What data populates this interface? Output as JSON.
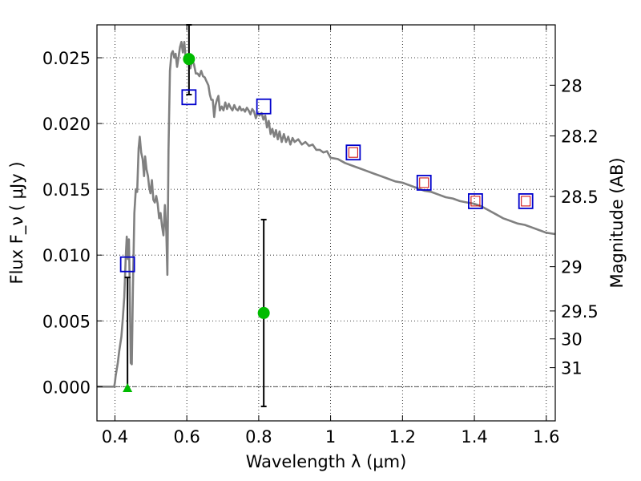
{
  "chart_data": {
    "type": "scatter",
    "xlabel": "Wavelength  λ (μm)",
    "ylabel": "Flux  F_ν  ( μJy )",
    "ylabel_right": "Magnitude (AB)",
    "xlim": [
      0.35,
      1.625
    ],
    "ylim": [
      -0.0026,
      0.0275
    ],
    "grid": true,
    "x_ticks": [
      {
        "value": 0.4,
        "label": "0.4"
      },
      {
        "value": 0.6,
        "label": "0.6"
      },
      {
        "value": 0.8,
        "label": "0.8"
      },
      {
        "value": 1.0,
        "label": "1"
      },
      {
        "value": 1.2,
        "label": "1.2"
      },
      {
        "value": 1.4,
        "label": "1.4"
      },
      {
        "value": 1.6,
        "label": "1.6"
      }
    ],
    "y_ticks": [
      {
        "value": 0.0,
        "label": "0.000"
      },
      {
        "value": 0.005,
        "label": "0.005"
      },
      {
        "value": 0.01,
        "label": "0.010"
      },
      {
        "value": 0.015,
        "label": "0.015"
      },
      {
        "value": 0.02,
        "label": "0.020"
      },
      {
        "value": 0.025,
        "label": "0.025"
      }
    ],
    "y_right_ticks": [
      {
        "value": 28,
        "label": "28"
      },
      {
        "value": 28.2,
        "label": "28.2"
      },
      {
        "value": 28.5,
        "label": "28.5"
      },
      {
        "value": 29,
        "label": "29"
      },
      {
        "value": 29.5,
        "label": "29.5"
      },
      {
        "value": 30,
        "label": "30"
      },
      {
        "value": 31,
        "label": "31"
      }
    ],
    "colors": {
      "model": "#808080",
      "observed": "#00bb00",
      "model_phot_outer": "#0000cc",
      "model_phot_inner": "#cc0000",
      "errorbar": "#000000",
      "zero_line": "#555555"
    },
    "series": [
      {
        "kind": "line",
        "role": "model spectrum",
        "points": [
          [
            0.35,
            0.0
          ],
          [
            0.398,
            0.0
          ],
          [
            0.4,
            0.0003
          ],
          [
            0.402,
            0.0008
          ],
          [
            0.408,
            0.0018
          ],
          [
            0.412,
            0.0027
          ],
          [
            0.418,
            0.0038
          ],
          [
            0.422,
            0.0052
          ],
          [
            0.426,
            0.0068
          ],
          [
            0.43,
            0.0098
          ],
          [
            0.433,
            0.0114
          ],
          [
            0.436,
            0.0097
          ],
          [
            0.439,
            0.0112
          ],
          [
            0.441,
            0.0082
          ],
          [
            0.444,
            0.0018
          ],
          [
            0.447,
            0.0017
          ],
          [
            0.45,
            0.0075
          ],
          [
            0.454,
            0.0132
          ],
          [
            0.458,
            0.015
          ],
          [
            0.462,
            0.0148
          ],
          [
            0.466,
            0.0181
          ],
          [
            0.469,
            0.019
          ],
          [
            0.473,
            0.0178
          ],
          [
            0.477,
            0.0173
          ],
          [
            0.481,
            0.016
          ],
          [
            0.484,
            0.0175
          ],
          [
            0.488,
            0.0165
          ],
          [
            0.492,
            0.016
          ],
          [
            0.495,
            0.0152
          ],
          [
            0.499,
            0.0147
          ],
          [
            0.503,
            0.0157
          ],
          [
            0.507,
            0.0142
          ],
          [
            0.511,
            0.014
          ],
          [
            0.515,
            0.0145
          ],
          [
            0.519,
            0.0139
          ],
          [
            0.523,
            0.0128
          ],
          [
            0.527,
            0.0132
          ],
          [
            0.531,
            0.0122
          ],
          [
            0.535,
            0.0115
          ],
          [
            0.539,
            0.0138
          ],
          [
            0.543,
            0.0117
          ],
          [
            0.546,
            0.0085
          ],
          [
            0.549,
            0.018
          ],
          [
            0.553,
            0.024
          ],
          [
            0.557,
            0.0253
          ],
          [
            0.561,
            0.0255
          ],
          [
            0.565,
            0.025
          ],
          [
            0.569,
            0.0253
          ],
          [
            0.573,
            0.0243
          ],
          [
            0.577,
            0.025
          ],
          [
            0.581,
            0.0258
          ],
          [
            0.585,
            0.0262
          ],
          [
            0.589,
            0.0254
          ],
          [
            0.593,
            0.0262
          ],
          [
            0.597,
            0.0249
          ],
          [
            0.601,
            0.0245
          ],
          [
            0.605,
            0.025
          ],
          [
            0.61,
            0.0242
          ],
          [
            0.615,
            0.0248
          ],
          [
            0.62,
            0.0245
          ],
          [
            0.625,
            0.0238
          ],
          [
            0.63,
            0.0238
          ],
          [
            0.635,
            0.0236
          ],
          [
            0.64,
            0.024
          ],
          [
            0.645,
            0.0236
          ],
          [
            0.65,
            0.0235
          ],
          [
            0.655,
            0.0232
          ],
          [
            0.66,
            0.0229
          ],
          [
            0.664,
            0.0222
          ],
          [
            0.668,
            0.0218
          ],
          [
            0.672,
            0.0218
          ],
          [
            0.676,
            0.0205
          ],
          [
            0.68,
            0.0214
          ],
          [
            0.684,
            0.0218
          ],
          [
            0.688,
            0.0221
          ],
          [
            0.692,
            0.021
          ],
          [
            0.697,
            0.0213
          ],
          [
            0.702,
            0.021
          ],
          [
            0.707,
            0.0216
          ],
          [
            0.712,
            0.0211
          ],
          [
            0.717,
            0.0215
          ],
          [
            0.722,
            0.0212
          ],
          [
            0.727,
            0.021
          ],
          [
            0.732,
            0.0214
          ],
          [
            0.737,
            0.0211
          ],
          [
            0.742,
            0.021
          ],
          [
            0.747,
            0.0213
          ],
          [
            0.752,
            0.021
          ],
          [
            0.757,
            0.0211
          ],
          [
            0.762,
            0.0209
          ],
          [
            0.767,
            0.0212
          ],
          [
            0.772,
            0.021
          ],
          [
            0.777,
            0.0207
          ],
          [
            0.782,
            0.0211
          ],
          [
            0.787,
            0.0209
          ],
          [
            0.792,
            0.0204
          ],
          [
            0.797,
            0.0208
          ],
          [
            0.802,
            0.0206
          ],
          [
            0.808,
            0.0208
          ],
          [
            0.813,
            0.0203
          ],
          [
            0.818,
            0.0206
          ],
          [
            0.823,
            0.0197
          ],
          [
            0.828,
            0.0202
          ],
          [
            0.833,
            0.0192
          ],
          [
            0.838,
            0.0196
          ],
          [
            0.843,
            0.019
          ],
          [
            0.848,
            0.0195
          ],
          [
            0.853,
            0.0188
          ],
          [
            0.858,
            0.0194
          ],
          [
            0.864,
            0.0186
          ],
          [
            0.87,
            0.0192
          ],
          [
            0.876,
            0.0186
          ],
          [
            0.882,
            0.019
          ],
          [
            0.888,
            0.0184
          ],
          [
            0.894,
            0.0189
          ],
          [
            0.9,
            0.0186
          ],
          [
            0.91,
            0.0188
          ],
          [
            0.92,
            0.0184
          ],
          [
            0.93,
            0.0186
          ],
          [
            0.94,
            0.0183
          ],
          [
            0.95,
            0.0184
          ],
          [
            0.96,
            0.018
          ],
          [
            0.97,
            0.018
          ],
          [
            0.98,
            0.0178
          ],
          [
            0.99,
            0.0179
          ],
          [
            1.0,
            0.0174
          ],
          [
            1.02,
            0.0173
          ],
          [
            1.04,
            0.017
          ],
          [
            1.06,
            0.0168
          ],
          [
            1.08,
            0.0166
          ],
          [
            1.1,
            0.0164
          ],
          [
            1.12,
            0.0162
          ],
          [
            1.14,
            0.016
          ],
          [
            1.16,
            0.0158
          ],
          [
            1.18,
            0.0156
          ],
          [
            1.2,
            0.0155
          ],
          [
            1.22,
            0.0153
          ],
          [
            1.24,
            0.0151
          ],
          [
            1.26,
            0.0149
          ],
          [
            1.28,
            0.0148
          ],
          [
            1.3,
            0.0146
          ],
          [
            1.32,
            0.0144
          ],
          [
            1.34,
            0.0143
          ],
          [
            1.36,
            0.0141
          ],
          [
            1.38,
            0.014
          ],
          [
            1.4,
            0.0139
          ],
          [
            1.42,
            0.0137
          ],
          [
            1.44,
            0.0134
          ],
          [
            1.46,
            0.0131
          ],
          [
            1.48,
            0.0128
          ],
          [
            1.5,
            0.0126
          ],
          [
            1.52,
            0.0124
          ],
          [
            1.54,
            0.0123
          ],
          [
            1.56,
            0.0121
          ],
          [
            1.58,
            0.0119
          ],
          [
            1.6,
            0.0117
          ],
          [
            1.625,
            0.0116
          ]
        ]
      },
      {
        "kind": "observed",
        "role": "observed photometry",
        "points": [
          {
            "x": 0.435,
            "y": -0.0001,
            "yerr_low": 0.0001,
            "yerr_high": 0.0084,
            "marker": "triangle"
          },
          {
            "x": 0.606,
            "y": 0.0249,
            "yerr_low": 0.0027,
            "yerr_high": 0.0026,
            "marker": "circle"
          },
          {
            "x": 0.814,
            "y": 0.0056,
            "yerr_low": 0.0071,
            "yerr_high": 0.0071,
            "marker": "circle"
          }
        ]
      },
      {
        "kind": "model_photometry",
        "role": "model photometry",
        "points": [
          {
            "x": 0.435,
            "y": 0.0093,
            "inner": false
          },
          {
            "x": 0.606,
            "y": 0.022,
            "inner": false
          },
          {
            "x": 0.814,
            "y": 0.0213,
            "inner": false
          },
          {
            "x": 1.063,
            "y": 0.0178,
            "inner": true
          },
          {
            "x": 1.26,
            "y": 0.0155,
            "inner": true
          },
          {
            "x": 1.403,
            "y": 0.0141,
            "inner": true
          },
          {
            "x": 1.543,
            "y": 0.0141,
            "inner": true
          }
        ]
      }
    ]
  }
}
